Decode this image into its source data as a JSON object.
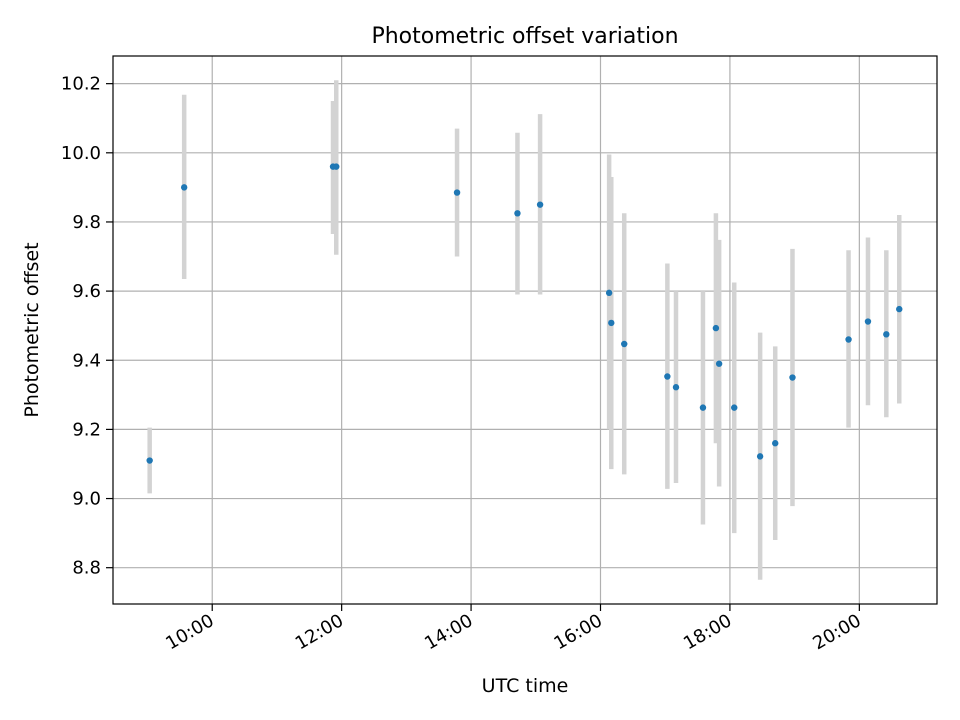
{
  "chart_data": {
    "type": "scatter",
    "title": "Photometric offset variation",
    "xlabel": "UTC time",
    "ylabel": "Photometric offset",
    "x_axis_type": "time",
    "xlim": [
      "08:28",
      "21:12"
    ],
    "ylim": [
      8.695,
      10.28
    ],
    "x_ticks": [
      "10:00",
      "12:00",
      "14:00",
      "16:00",
      "18:00",
      "20:00"
    ],
    "y_ticks": [
      8.8,
      9.0,
      9.2,
      9.4,
      9.6,
      9.8,
      10.0,
      10.2
    ],
    "grid": true,
    "legend": "none",
    "marker_color": "#1f77b4",
    "errorbar_color": "#d3d3d3",
    "points": [
      {
        "x": "09:02",
        "y": 9.11,
        "y_low": 9.015,
        "y_high": 9.205
      },
      {
        "x": "09:34",
        "y": 9.9,
        "y_low": 9.635,
        "y_high": 10.168
      },
      {
        "x": "11:52",
        "y": 9.96,
        "y_low": 9.765,
        "y_high": 10.15
      },
      {
        "x": "11:55",
        "y": 9.96,
        "y_low": 9.705,
        "y_high": 10.21
      },
      {
        "x": "13:47",
        "y": 9.885,
        "y_low": 9.7,
        "y_high": 10.07
      },
      {
        "x": "14:43",
        "y": 9.825,
        "y_low": 9.59,
        "y_high": 10.058
      },
      {
        "x": "15:04",
        "y": 9.85,
        "y_low": 9.59,
        "y_high": 10.112
      },
      {
        "x": "16:08",
        "y": 9.595,
        "y_low": 9.2,
        "y_high": 9.995
      },
      {
        "x": "16:10",
        "y": 9.508,
        "y_low": 9.085,
        "y_high": 9.93
      },
      {
        "x": "16:22",
        "y": 9.447,
        "y_low": 9.07,
        "y_high": 9.825
      },
      {
        "x": "17:02",
        "y": 9.353,
        "y_low": 9.028,
        "y_high": 9.68
      },
      {
        "x": "17:10",
        "y": 9.322,
        "y_low": 9.045,
        "y_high": 9.6
      },
      {
        "x": "17:35",
        "y": 9.263,
        "y_low": 8.925,
        "y_high": 9.6
      },
      {
        "x": "17:47",
        "y": 9.493,
        "y_low": 9.16,
        "y_high": 9.825
      },
      {
        "x": "17:50",
        "y": 9.39,
        "y_low": 9.035,
        "y_high": 9.748
      },
      {
        "x": "18:04",
        "y": 9.263,
        "y_low": 8.9,
        "y_high": 9.625
      },
      {
        "x": "18:28",
        "y": 9.122,
        "y_low": 8.765,
        "y_high": 9.48
      },
      {
        "x": "18:42",
        "y": 9.16,
        "y_low": 8.88,
        "y_high": 9.44
      },
      {
        "x": "18:58",
        "y": 9.35,
        "y_low": 8.978,
        "y_high": 9.722
      },
      {
        "x": "19:50",
        "y": 9.46,
        "y_low": 9.205,
        "y_high": 9.718
      },
      {
        "x": "20:08",
        "y": 9.512,
        "y_low": 9.27,
        "y_high": 9.755
      },
      {
        "x": "20:25",
        "y": 9.475,
        "y_low": 9.235,
        "y_high": 9.718
      },
      {
        "x": "20:37",
        "y": 9.548,
        "y_low": 9.275,
        "y_high": 9.82
      }
    ]
  }
}
